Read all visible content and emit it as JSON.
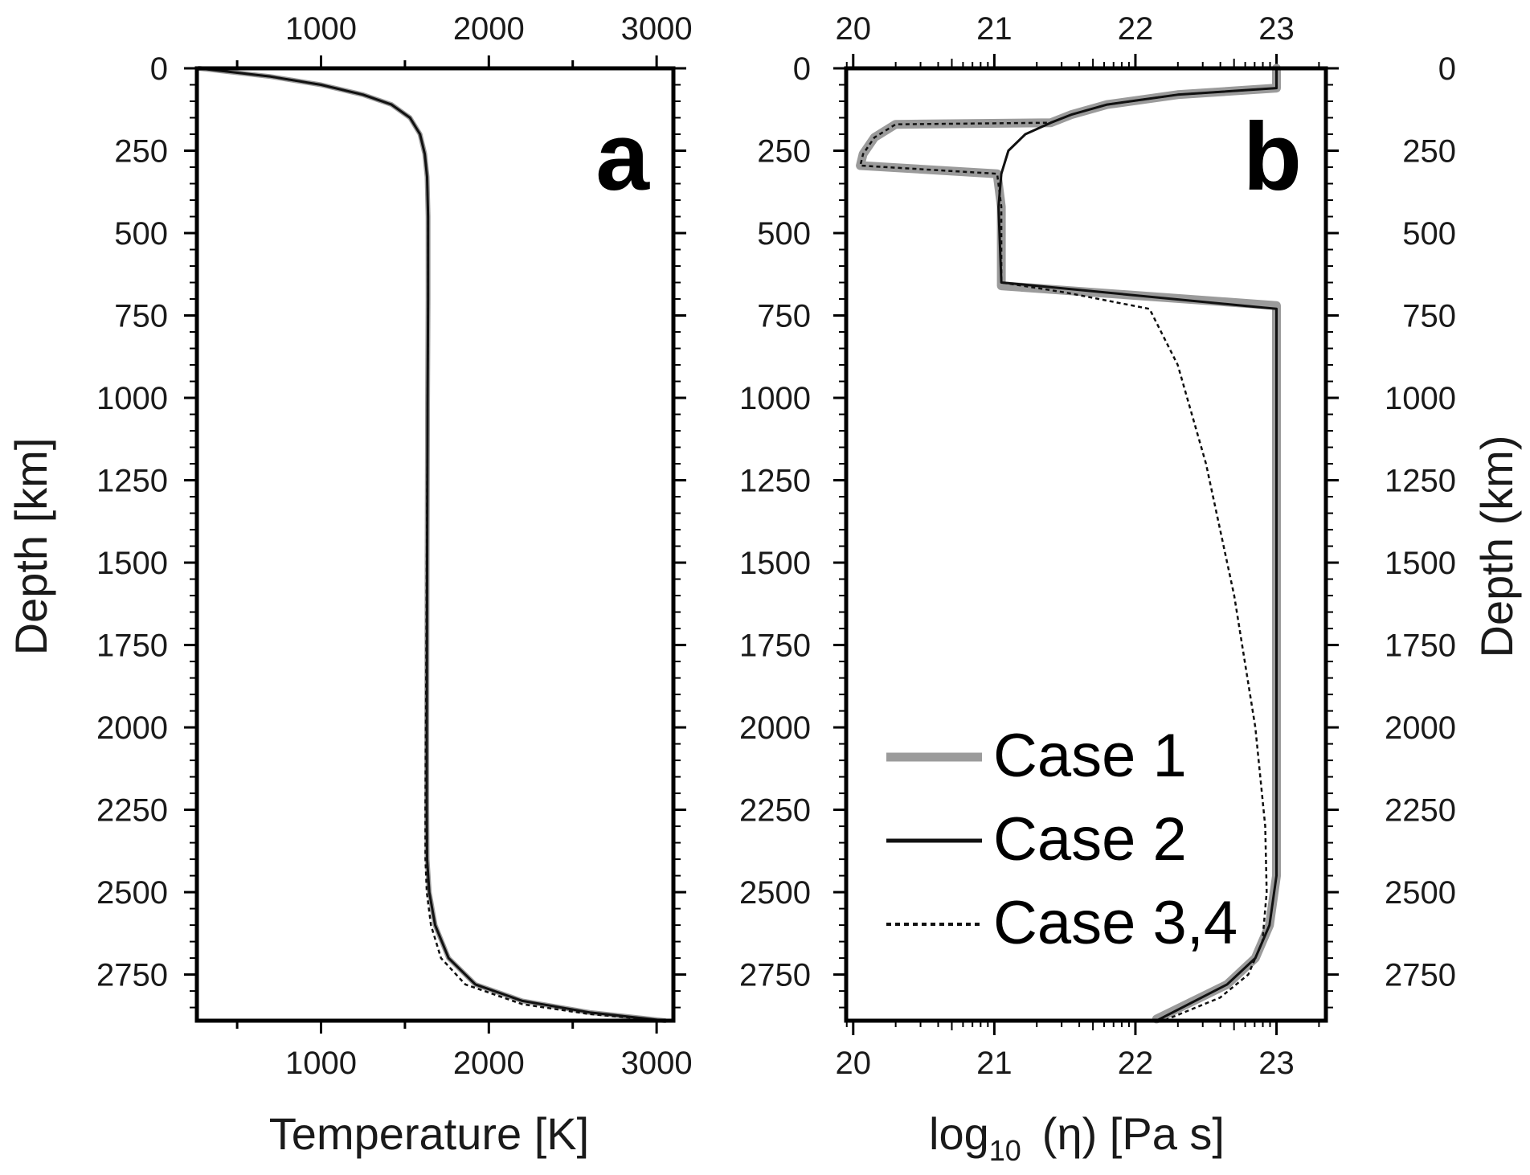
{
  "figure": {
    "panel_a_letter": "a",
    "panel_b_letter": "b"
  },
  "chart_data": [
    {
      "panel": "a",
      "type": "line",
      "title": "",
      "xlabel": "Temperature [K]",
      "ylabel": "Depth [km]",
      "xlim": [
        260,
        3100
      ],
      "ylim": [
        2890,
        0
      ],
      "x_ticks": [
        1000,
        2000,
        3000
      ],
      "y_ticks": [
        0,
        250,
        500,
        750,
        1000,
        1250,
        1500,
        1750,
        2000,
        2250,
        2500,
        2750
      ],
      "top_axis_labels": true,
      "grid": false,
      "series": [
        {
          "style": "solid-gray-thick",
          "color": "#9b9b9b",
          "points": [
            [
              273,
              0
            ],
            [
              700,
              25
            ],
            [
              1000,
              50
            ],
            [
              1250,
              80
            ],
            [
              1420,
              110
            ],
            [
              1530,
              150
            ],
            [
              1590,
              200
            ],
            [
              1618,
              260
            ],
            [
              1632,
              330
            ],
            [
              1638,
              450
            ],
            [
              1638,
              700
            ],
            [
              1635,
              1000
            ],
            [
              1632,
              1500
            ],
            [
              1630,
              2000
            ],
            [
              1630,
              2250
            ],
            [
              1632,
              2400
            ],
            [
              1645,
              2500
            ],
            [
              1680,
              2600
            ],
            [
              1760,
              2700
            ],
            [
              1920,
              2780
            ],
            [
              2200,
              2830
            ],
            [
              2600,
              2865
            ],
            [
              3050,
              2890
            ]
          ]
        },
        {
          "style": "solid-black",
          "color": "#111111",
          "points": [
            [
              273,
              0
            ],
            [
              700,
              25
            ],
            [
              1000,
              50
            ],
            [
              1250,
              80
            ],
            [
              1420,
              110
            ],
            [
              1530,
              150
            ],
            [
              1590,
              200
            ],
            [
              1618,
              260
            ],
            [
              1632,
              330
            ],
            [
              1638,
              450
            ],
            [
              1638,
              700
            ],
            [
              1635,
              1000
            ],
            [
              1632,
              1500
            ],
            [
              1630,
              2000
            ],
            [
              1630,
              2250
            ],
            [
              1632,
              2400
            ],
            [
              1645,
              2500
            ],
            [
              1680,
              2600
            ],
            [
              1760,
              2700
            ],
            [
              1920,
              2780
            ],
            [
              2200,
              2830
            ],
            [
              2600,
              2865
            ],
            [
              3050,
              2890
            ]
          ]
        },
        {
          "style": "dotted-black",
          "color": "#111111",
          "points": [
            [
              273,
              0
            ],
            [
              700,
              25
            ],
            [
              1000,
              50
            ],
            [
              1250,
              80
            ],
            [
              1420,
              110
            ],
            [
              1530,
              150
            ],
            [
              1590,
              200
            ],
            [
              1618,
              260
            ],
            [
              1632,
              330
            ],
            [
              1638,
              450
            ],
            [
              1638,
              700
            ],
            [
              1635,
              1000
            ],
            [
              1630,
              1500
            ],
            [
              1625,
              2000
            ],
            [
              1622,
              2250
            ],
            [
              1622,
              2400
            ],
            [
              1630,
              2500
            ],
            [
              1655,
              2600
            ],
            [
              1715,
              2700
            ],
            [
              1860,
              2780
            ],
            [
              2200,
              2840
            ],
            [
              2600,
              2870
            ],
            [
              3050,
              2890
            ]
          ]
        }
      ]
    },
    {
      "panel": "b",
      "type": "line",
      "title": "",
      "xlabel_main": "log",
      "xlabel_sub": "10",
      "xlabel_rest": "(η)  [Pa s]",
      "ylabel": "Depth (km)",
      "xlim": [
        19.95,
        23.35
      ],
      "ylim": [
        2890,
        0
      ],
      "x_ticks": [
        20,
        21,
        22,
        23
      ],
      "y_ticks": [
        0,
        250,
        500,
        750,
        1000,
        1250,
        1500,
        1750,
        2000,
        2250,
        2500,
        2750
      ],
      "top_axis_labels": true,
      "grid": false,
      "legend_position": "bottom-left",
      "series": [
        {
          "name": "Case 1",
          "style": "solid-gray-thick",
          "color": "#9b9b9b",
          "points": [
            [
              23.0,
              0
            ],
            [
              23.0,
              60
            ],
            [
              22.3,
              80
            ],
            [
              21.8,
              110
            ],
            [
              21.55,
              140
            ],
            [
              21.4,
              165
            ],
            [
              20.3,
              170
            ],
            [
              20.15,
              210
            ],
            [
              20.07,
              260
            ],
            [
              20.05,
              295
            ],
            [
              21.02,
              320
            ],
            [
              21.05,
              420
            ],
            [
              21.05,
              660
            ],
            [
              23.0,
              720
            ],
            [
              23.0,
              2450
            ],
            [
              22.95,
              2600
            ],
            [
              22.85,
              2700
            ],
            [
              22.65,
              2780
            ],
            [
              22.15,
              2885
            ]
          ]
        },
        {
          "name": "Case 2",
          "style": "solid-black",
          "color": "#111111",
          "points": [
            [
              23.0,
              0
            ],
            [
              23.0,
              60
            ],
            [
              22.3,
              80
            ],
            [
              21.8,
              110
            ],
            [
              21.55,
              140
            ],
            [
              21.4,
              165
            ],
            [
              21.22,
              200
            ],
            [
              21.1,
              250
            ],
            [
              21.05,
              320
            ],
            [
              21.03,
              420
            ],
            [
              21.05,
              650
            ],
            [
              23.0,
              730
            ],
            [
              23.0,
              2450
            ],
            [
              22.95,
              2600
            ],
            [
              22.85,
              2700
            ],
            [
              22.65,
              2780
            ],
            [
              22.15,
              2890
            ]
          ]
        },
        {
          "name": "Case 3,4",
          "style": "dotted-black",
          "color": "#111111",
          "points": [
            [
              23.0,
              0
            ],
            [
              23.0,
              60
            ],
            [
              22.3,
              80
            ],
            [
              21.8,
              110
            ],
            [
              21.55,
              140
            ],
            [
              21.4,
              165
            ],
            [
              20.3,
              170
            ],
            [
              20.15,
              210
            ],
            [
              20.07,
              260
            ],
            [
              20.05,
              295
            ],
            [
              21.02,
              320
            ],
            [
              21.05,
              420
            ],
            [
              21.05,
              650
            ],
            [
              21.5,
              680
            ],
            [
              22.1,
              730
            ],
            [
              22.3,
              900
            ],
            [
              22.5,
              1200
            ],
            [
              22.7,
              1600
            ],
            [
              22.85,
              2000
            ],
            [
              22.92,
              2300
            ],
            [
              22.93,
              2500
            ],
            [
              22.9,
              2650
            ],
            [
              22.8,
              2750
            ],
            [
              22.6,
              2820
            ],
            [
              22.2,
              2890
            ]
          ]
        }
      ]
    }
  ]
}
